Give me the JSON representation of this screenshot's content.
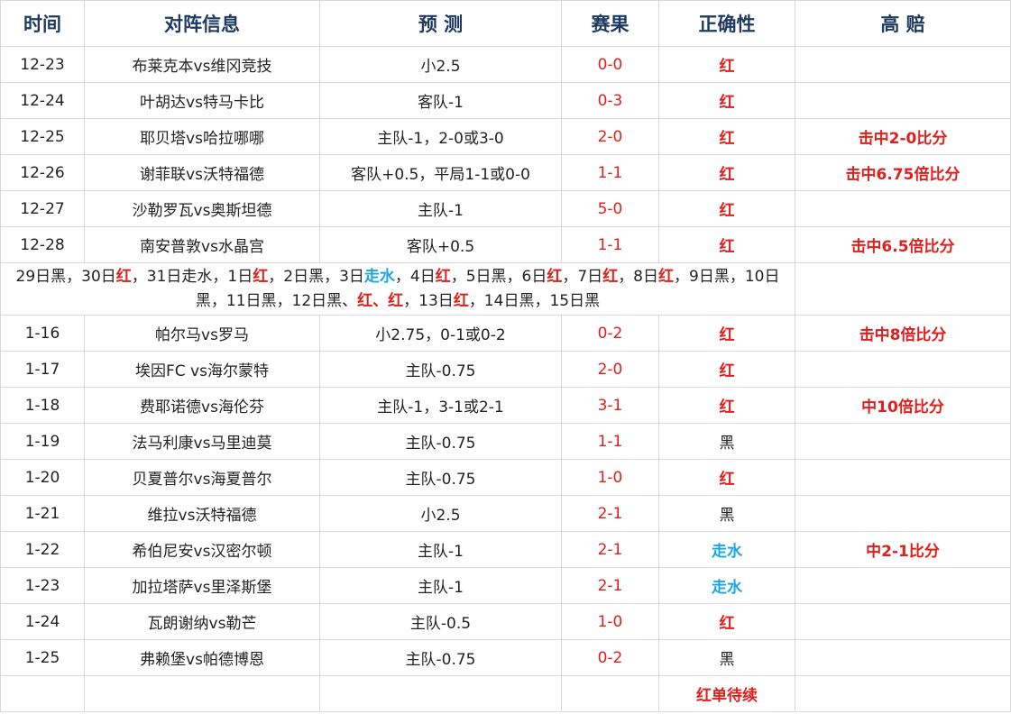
{
  "headers": [
    "时间",
    "对阵信息",
    "预  测",
    "赛果",
    "正确性",
    "高  赔"
  ],
  "rows_a": [
    {
      "date": "12-23",
      "match": "布莱克本vs维冈竞技",
      "pred": "小2.5",
      "score": "0-0",
      "result": "红",
      "result_type": "red",
      "high": ""
    },
    {
      "date": "12-24",
      "match": "叶胡达vs特马卡比",
      "pred": "客队-1",
      "score": "0-3",
      "result": "红",
      "result_type": "red",
      "high": ""
    },
    {
      "date": "12-25",
      "match": "耶贝塔vs哈拉哪哪",
      "pred": "主队-1，2-0或3-0",
      "score": "2-0",
      "result": "红",
      "result_type": "red",
      "high": "击中2-0比分"
    },
    {
      "date": "12-26",
      "match": "谢菲联vs沃特福德",
      "pred": "客队+0.5，平局1-1或0-0",
      "score": "1-1",
      "result": "红",
      "result_type": "red",
      "high": "击中6.75倍比分"
    },
    {
      "date": "12-27",
      "match": "沙勒罗瓦vs奥斯坦德",
      "pred": "主队-1",
      "score": "5-0",
      "result": "红",
      "result_type": "red",
      "high": ""
    },
    {
      "date": "12-28",
      "match": "南安普敦vs水晶宫",
      "pred": "客队+0.5",
      "score": "1-1",
      "result": "红",
      "result_type": "red",
      "high": "击中6.5倍比分"
    }
  ],
  "summary": [
    {
      "t": "29日黑，30日",
      "s": ""
    },
    {
      "t": "红",
      "s": "r"
    },
    {
      "t": "，31日走水，1日",
      "s": ""
    },
    {
      "t": "红",
      "s": "r"
    },
    {
      "t": "，2日黑，3日",
      "s": ""
    },
    {
      "t": "走水",
      "s": "b"
    },
    {
      "t": "，4日",
      "s": ""
    },
    {
      "t": "红",
      "s": "r"
    },
    {
      "t": "，5日黑，6日",
      "s": ""
    },
    {
      "t": "红",
      "s": "r"
    },
    {
      "t": "，7日",
      "s": ""
    },
    {
      "t": "红",
      "s": "r"
    },
    {
      "t": "，8日",
      "s": ""
    },
    {
      "t": "红",
      "s": "r"
    },
    {
      "t": "，9日黑，10日黑，11日黑，12日黑、",
      "s": ""
    },
    {
      "t": "红、红",
      "s": "r"
    },
    {
      "t": "，13日",
      "s": ""
    },
    {
      "t": "红",
      "s": "r"
    },
    {
      "t": "，14日黑，15日黑",
      "s": ""
    }
  ],
  "rows_b": [
    {
      "date": "1-16",
      "match": "帕尔马vs罗马",
      "pred": "小2.75，0-1或0-2",
      "score": "0-2",
      "result": "红",
      "result_type": "red",
      "high": "击中8倍比分"
    },
    {
      "date": "1-17",
      "match": "埃因FC vs海尔蒙特",
      "pred": "主队-0.75",
      "score": "2-0",
      "result": "红",
      "result_type": "red",
      "high": ""
    },
    {
      "date": "1-18",
      "match": "费耶诺德vs海伦芬",
      "pred": "主队-1，3-1或2-1",
      "score": "3-1",
      "result": "红",
      "result_type": "red",
      "high": "中10倍比分"
    },
    {
      "date": "1-19",
      "match": "法马利康vs马里迪莫",
      "pred": "主队-0.75",
      "score": "1-1",
      "result": "黑",
      "result_type": "black",
      "high": ""
    },
    {
      "date": "1-20",
      "match": "贝夏普尔vs海夏普尔",
      "pred": "主队-0.75",
      "score": "1-0",
      "result": "红",
      "result_type": "red",
      "high": ""
    },
    {
      "date": "1-21",
      "match": "维拉vs沃特福德",
      "pred": "小2.5",
      "score": "2-1",
      "result": "黑",
      "result_type": "black",
      "high": ""
    },
    {
      "date": "1-22",
      "match": "希伯尼安vs汉密尔顿",
      "pred": "主队-1",
      "score": "2-1",
      "result": "走水",
      "result_type": "blue",
      "high": "中2-1比分"
    },
    {
      "date": "1-23",
      "match": "加拉塔萨vs里泽斯堡",
      "pred": "主队-1",
      "score": "2-1",
      "result": "走水",
      "result_type": "blue",
      "high": ""
    },
    {
      "date": "1-24",
      "match": "瓦朗谢纳vs勒芒",
      "pred": "主队-0.5",
      "score": "1-0",
      "result": "红",
      "result_type": "red",
      "high": ""
    },
    {
      "date": "1-25",
      "match": "弗赖堡vs帕德博恩",
      "pred": "主队-0.75",
      "score": "0-2",
      "result": "黑",
      "result_type": "black",
      "high": ""
    }
  ],
  "footer": {
    "note": "红单待续"
  },
  "colors": {
    "red": "#e0201c",
    "blue": "#1ca6e3",
    "header": "#1f3a5f",
    "border": "#d9d9d9"
  }
}
